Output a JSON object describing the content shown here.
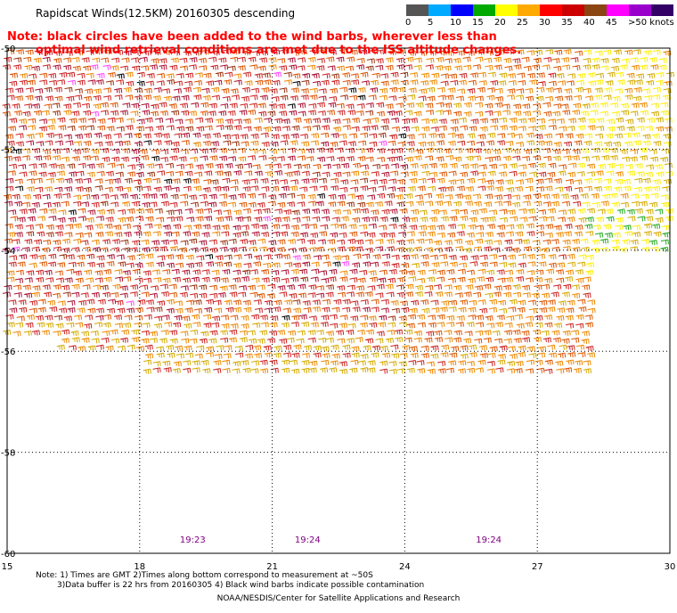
{
  "header": {
    "title": "Rapidscat Winds(12.5KM) 20160305 descending"
  },
  "note": {
    "line1": "Note: black circles have been added to the wind barbs, wherever less than",
    "line2": "optimal wind retrieval conditions are met due to the ISS altitude changes."
  },
  "legend": {
    "colors": [
      "#555555",
      "#00aaff",
      "#0000ff",
      "#00aa00",
      "#ffff00",
      "#ffaa00",
      "#ff0000",
      "#cc0000",
      "#8b4513",
      "#ff00ff",
      "#9900cc",
      "#330066"
    ],
    "labels": [
      "0",
      "5",
      "10",
      "15",
      "20",
      "25",
      "30",
      "35",
      "40",
      "45",
      ">50 knots"
    ]
  },
  "map": {
    "lat_labels": [
      "-50",
      "-52",
      "-54",
      "-56",
      "-58",
      "-60"
    ],
    "lon_labels": [
      "15",
      "18",
      "21",
      "24",
      "27",
      "30"
    ],
    "lat_range": [
      -60,
      -50
    ],
    "lon_range": [
      15,
      30
    ],
    "time_labels": [
      {
        "text": "19:23",
        "lon": 19.2
      },
      {
        "text": "19:24",
        "lon": 21.8
      },
      {
        "text": "19:24",
        "lon": 25.9
      }
    ],
    "barb_palette": [
      "#d4aa00",
      "#ee8800",
      "#dd5500",
      "#cc2222",
      "#aa1133",
      "#993311",
      "#ffee00",
      "#22aa22",
      "#ff44ff",
      "#000000"
    ]
  },
  "footer": {
    "line1": "Note: 1) Times are GMT 2)Times along bottom correspond to measurement at ~50S",
    "line2": "3)Data buffer is 22 hrs from 20160305 4) Black wind barbs indicate possible contamination",
    "credit": "NOAA/NESDIS/Center for Satellite Applications and Research"
  }
}
